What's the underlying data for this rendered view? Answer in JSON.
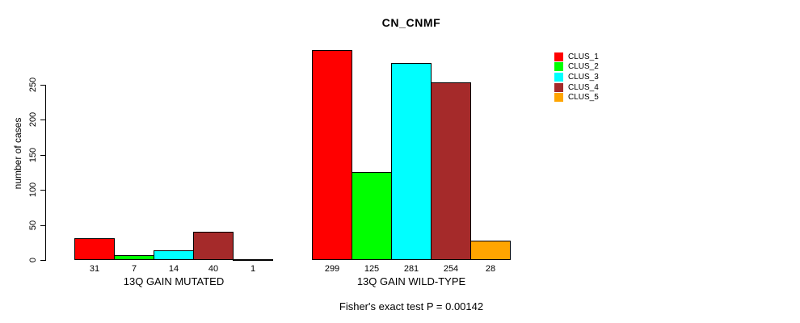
{
  "chart_data": {
    "type": "bar",
    "title": "CN_CNMF",
    "ylabel": "number of cases",
    "ylim": [
      0,
      250
    ],
    "yticks": [
      0,
      50,
      100,
      150,
      200,
      250
    ],
    "grid": false,
    "legend_position": "right-outside",
    "clusters": [
      "CLUS_1",
      "CLUS_2",
      "CLUS_3",
      "CLUS_4",
      "CLUS_5"
    ],
    "series_colors": [
      "#FF0000",
      "#00FF00",
      "#00FFFF",
      "#A52A2A",
      "#FFA500"
    ],
    "groups": [
      {
        "label": "13Q GAIN MUTATED",
        "values": [
          31,
          7,
          14,
          40,
          1
        ]
      },
      {
        "label": "13Q GAIN WILD-TYPE",
        "values": [
          299,
          125,
          281,
          254,
          28
        ]
      }
    ],
    "annotation": "Fisher's exact test P = 0.00142"
  },
  "legend": {
    "items": [
      {
        "label": "CLUS_1",
        "color": "#FF0000"
      },
      {
        "label": "CLUS_2",
        "color": "#00FF00"
      },
      {
        "label": "CLUS_3",
        "color": "#00FFFF"
      },
      {
        "label": "CLUS_4",
        "color": "#A52A2A"
      },
      {
        "label": "CLUS_5",
        "color": "#FFA500"
      }
    ]
  }
}
